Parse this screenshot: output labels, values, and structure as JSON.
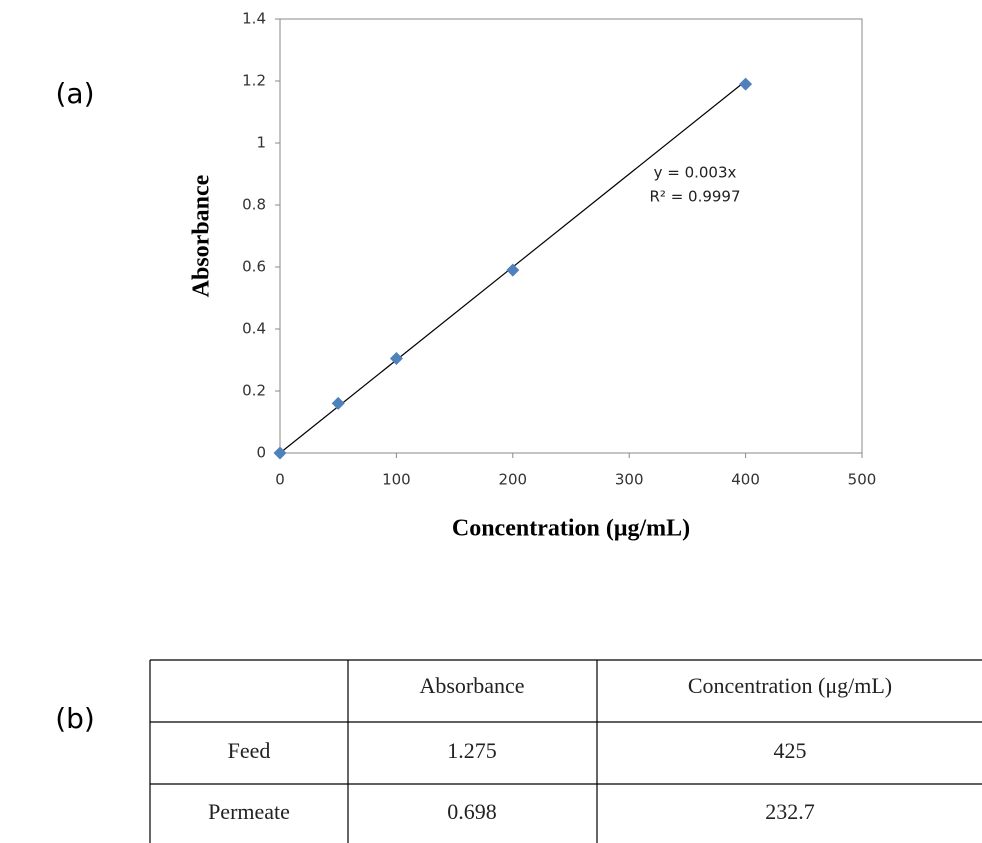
{
  "label_a": "(a)",
  "chart_data": {
    "type": "scatter",
    "x_label": "Concentration (μg/mL)",
    "y_label": "Absorbance",
    "x": [
      0,
      50,
      100,
      200,
      400
    ],
    "values": [
      0,
      0.16,
      0.305,
      0.59,
      1.19
    ],
    "color": "#4f81bd",
    "xlim": [
      0,
      500
    ],
    "xticks": [
      0,
      100,
      200,
      300,
      400,
      500
    ],
    "ylim": [
      0,
      1.4
    ],
    "yticks": [
      0,
      0.2,
      0.4,
      0.6,
      0.8,
      1,
      1.2,
      1.4
    ],
    "grid": false,
    "trendline": {
      "slope": 0.003,
      "equation": "y = 0.003x",
      "r2_label": "R² = 0.9997",
      "color": "#000000"
    }
  },
  "label_b": "(b)",
  "table": {
    "header": [
      "Absorbance",
      "Concentration (μg/mL)"
    ],
    "rows": [
      [
        "Feed",
        1.275,
        425
      ],
      [
        "Permeate",
        0.698,
        232.7
      ]
    ]
  }
}
